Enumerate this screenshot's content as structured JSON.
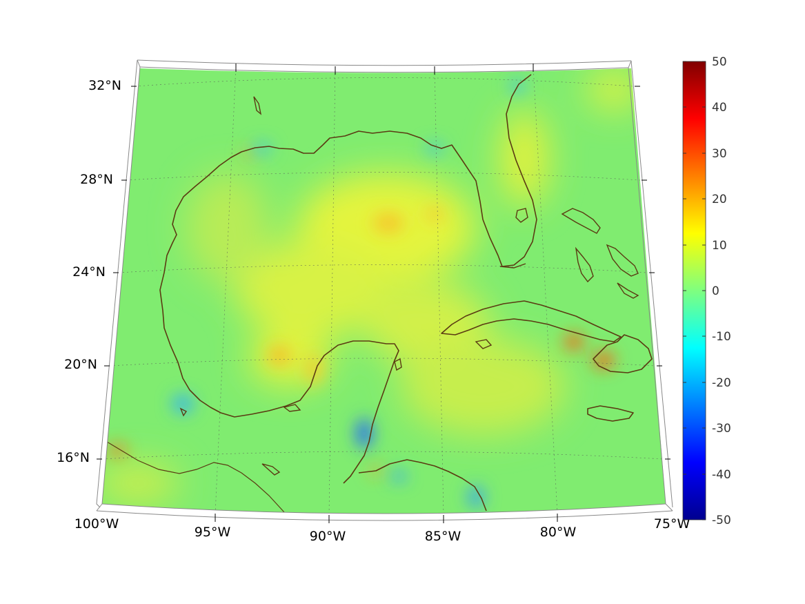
{
  "map": {
    "lon_labels": [
      "100°W",
      "95°W",
      "90°W",
      "85°W",
      "80°W",
      "75°W"
    ],
    "lat_labels": [
      "32°N",
      "28°N",
      "24°N",
      "20°N",
      "16°N"
    ],
    "extent": {
      "lon": [
        -100,
        -75
      ],
      "lat": [
        14,
        33
      ]
    }
  },
  "colorbar": {
    "ticks": [
      "50",
      "40",
      "30",
      "20",
      "10",
      "0",
      "-10",
      "-20",
      "-30",
      "-40",
      "-50"
    ],
    "range": [
      -50,
      50
    ],
    "colormap": "jet"
  },
  "colors": {
    "background_field": "#7fec6f",
    "coastline": "#5a3a12",
    "warm_anomaly": "#e8f53a",
    "hot_spot": "#f07a1e",
    "cold_spot": "#1a6ef0"
  }
}
